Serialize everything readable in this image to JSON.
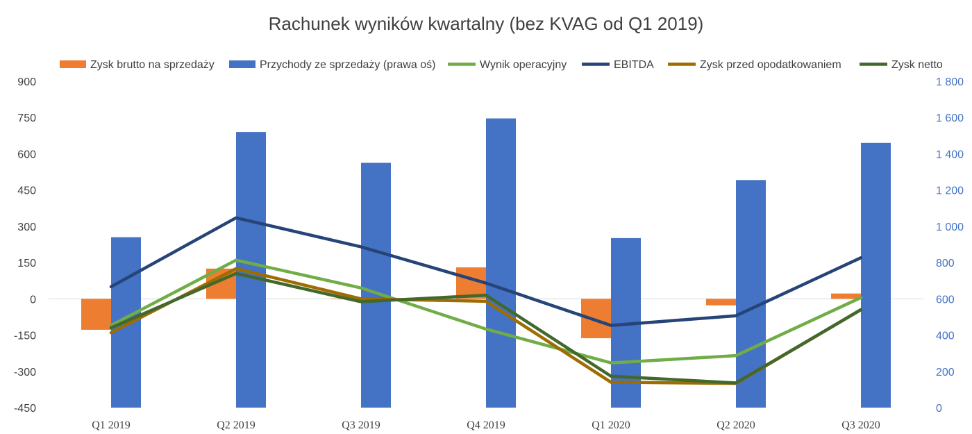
{
  "chart_data": {
    "type": "bar",
    "title": "Rachunek wyników kwartalny (bez KVAG od Q1 2019)",
    "categories": [
      "Q1 2019",
      "Q2 2019",
      "Q3 2019",
      "Q4 2019",
      "Q1 2020",
      "Q2 2020",
      "Q3 2020"
    ],
    "y_left": {
      "range": [
        -450,
        900
      ],
      "ticks": [
        "-450",
        "-300",
        "-150",
        "0",
        "150",
        "300",
        "450",
        "600",
        "750",
        "900"
      ]
    },
    "y_right": {
      "range": [
        0,
        1800
      ],
      "ticks": [
        "0",
        "200",
        "400",
        "600",
        "800",
        "1 000",
        "1 200",
        "1 400",
        "1 600",
        "1 800"
      ]
    },
    "legend_position": "top",
    "grid": false,
    "series": [
      {
        "name": "Zysk brutto na sprzedaży",
        "type": "bar",
        "axis": "left",
        "color": "#ed7d31",
        "values": [
          -128,
          125,
          -2,
          130,
          -163,
          -27,
          22
        ]
      },
      {
        "name": "Przychody ze sprzedaży (prawa oś)",
        "type": "bar",
        "axis": "right",
        "color": "#4472c4",
        "values": [
          940,
          1520,
          1350,
          1595,
          935,
          1255,
          1460
        ]
      },
      {
        "name": "Wynik operacyjny",
        "type": "line",
        "axis": "left",
        "color": "#70ad47",
        "values": [
          -110,
          160,
          45,
          -125,
          -265,
          -235,
          5
        ]
      },
      {
        "name": "EBITDA",
        "type": "line",
        "axis": "left",
        "color": "#264478",
        "values": [
          50,
          335,
          215,
          65,
          -110,
          -70,
          170
        ]
      },
      {
        "name": "Zysk przed opodatkowaniem",
        "type": "line",
        "axis": "left",
        "color": "#9e6c00",
        "values": [
          -140,
          125,
          0,
          -10,
          -345,
          -350,
          -45
        ]
      },
      {
        "name": "Zysk netto",
        "type": "line",
        "axis": "left",
        "color": "#43682b",
        "values": [
          -120,
          105,
          -12,
          15,
          -320,
          -348,
          -45
        ]
      }
    ]
  }
}
